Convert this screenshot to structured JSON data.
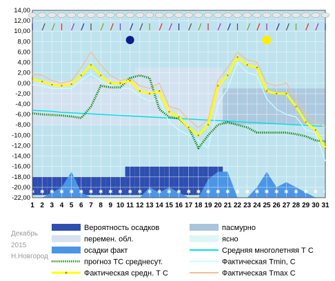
{
  "side_info": {
    "month": "Декабрь",
    "year": "2015",
    "city": "Н.Новгород"
  },
  "colors": {
    "background": "#bfe3ee",
    "overcast": "#a9c4dc",
    "variable_cloud": "#d6e2f0",
    "clear": "#ddf6f6",
    "precip_probability": "#2e4fb0",
    "precip_actual": "#4b95e6",
    "temp_actual": "#ffff00",
    "temp_min": "#c8ffff",
    "temp_max": "#f2c090",
    "temp_normal": "#00e0e8",
    "forecast": "#008000",
    "new_moon": "#0b1e8c",
    "full_moon": "#ffee00"
  },
  "legend": [
    {
      "label": "Вероятность осадков",
      "swatch": "bar",
      "color": "#2e4fb0"
    },
    {
      "label": "пасмурно",
      "swatch": "bar",
      "color": "#a9c4dc"
    },
    {
      "label": "перемен. обл.",
      "swatch": "bar",
      "color": "#d6e2f0"
    },
    {
      "label": "ясно",
      "swatch": "bar",
      "color": "#ddf6f6"
    },
    {
      "label": "осадки факт",
      "swatch": "bar",
      "color": "#4b95e6"
    },
    {
      "label": "Средняя многолетняя Т С",
      "swatch": "line",
      "color": "#00e0e8"
    },
    {
      "label": "прогноз ТС среднесут.",
      "swatch": "dotted",
      "color": "#008000"
    },
    {
      "label": "Фактическая Tmin, C",
      "swatch": "line",
      "color": "#c8ffff"
    },
    {
      "label": "Фактическая средн. Т С",
      "swatch": "marker-line",
      "color": "#ffff00"
    },
    {
      "label": "Фактическая Tmax С",
      "swatch": "line",
      "color": "#f2c090"
    },
    {
      "label": "новолуние",
      "swatch": "dot",
      "color": "#0b1e8c"
    },
    {
      "label": "Полнолуние",
      "swatch": "dot",
      "color": "#ffee00"
    }
  ],
  "chart_data": {
    "type": "line",
    "x": [
      1,
      2,
      3,
      4,
      5,
      6,
      7,
      8,
      9,
      10,
      11,
      12,
      13,
      14,
      15,
      16,
      17,
      18,
      19,
      20,
      21,
      22,
      23,
      24,
      25,
      26,
      27,
      28,
      29,
      30,
      31
    ],
    "xlim": [
      1,
      31
    ],
    "ylim": [
      -22,
      14
    ],
    "yticks": [
      14,
      12,
      10,
      8,
      6,
      4,
      2,
      0,
      -2,
      -4,
      -6,
      -8,
      -10,
      -12,
      -14,
      -16,
      -18,
      -20,
      -22
    ],
    "ytick_labels": [
      "14,00",
      "12,00",
      "10,00",
      "8,00",
      "6,00",
      "4,00",
      "2,00",
      "0,00",
      "-2,00",
      "-4,00",
      "-6,00",
      "-8,00",
      "-10,00",
      "-12,00",
      "-14,00",
      "-16,00",
      "-18,00",
      "-20,00",
      "-22,00"
    ],
    "series": [
      {
        "name": "Фактическая средн. Т С",
        "color": "#ffff00",
        "values": [
          0.8,
          0.3,
          -0.3,
          -0.5,
          -0.2,
          1.5,
          3.5,
          1.5,
          0,
          0,
          0.5,
          -1.5,
          -2,
          -1.5,
          -5.5,
          -6.5,
          -8.5,
          -10,
          -8,
          -0.5,
          1.5,
          5,
          3.5,
          3,
          -1.5,
          -2,
          -2,
          -4.5,
          -7.5,
          -9,
          -12.5
        ]
      },
      {
        "name": "Фактическая Tmin, C",
        "color": "#c8ffff",
        "values": [
          -0.3,
          -0.5,
          -1,
          -1,
          -1,
          0.5,
          1.8,
          0.5,
          -0.5,
          -1,
          -1,
          -2.5,
          -3.5,
          -3,
          -7.5,
          -9,
          -10,
          -11,
          -12.5,
          -4,
          -1,
          4,
          2,
          1.5,
          -3,
          -5,
          -6,
          -6.5,
          -9,
          -9.5,
          -15
        ]
      },
      {
        "name": "Фактическая Tmax С",
        "color": "#f2c090",
        "values": [
          1.8,
          1.5,
          0.5,
          0,
          0.5,
          3,
          6,
          3.5,
          1.5,
          0.5,
          1,
          -0.5,
          -1,
          0,
          -4.5,
          -5,
          -7,
          -8.5,
          -7,
          0.5,
          3,
          6,
          4.5,
          4,
          0,
          -0.5,
          0,
          -3,
          -6,
          -7.5,
          -8.5
        ]
      },
      {
        "name": "Средняя многолетняя Т С",
        "color": "#00e0e8",
        "values": [
          -5.2,
          -5.3,
          -5.4,
          -5.6,
          -5.7,
          -5.8,
          -5.9,
          -6,
          -6.1,
          -6.2,
          -6.3,
          -6.4,
          -6.5,
          -6.6,
          -6.7,
          -6.8,
          -6.9,
          -7,
          -7.1,
          -7.2,
          -7.3,
          -7.4,
          -7.5,
          -7.6,
          -7.7,
          -7.8,
          -7.9,
          -8,
          -8.1,
          -8.2,
          -8.3
        ]
      },
      {
        "name": "прогноз ТС среднесут.",
        "color": "#008000",
        "values": [
          -5.8,
          -6,
          -6.1,
          -6.2,
          -6.4,
          -6.7,
          -4.5,
          -0.5,
          -0.8,
          -0.8,
          1,
          1.5,
          1,
          -5,
          -6.5,
          -6.8,
          -8.5,
          -12.5,
          -10,
          -8,
          -7.5,
          -8,
          -8.5,
          -9.5,
          -9.5,
          -9.5,
          -9.5,
          -9.8,
          -10.2,
          -11,
          -11.2
        ]
      }
    ],
    "precip_probability": [
      1,
      1,
      1,
      1,
      1,
      1,
      1,
      1,
      1,
      1,
      1,
      1,
      1,
      1,
      1,
      1,
      1,
      1,
      1,
      1,
      0,
      0,
      0,
      0,
      0,
      0,
      0,
      0,
      0,
      0,
      0
    ],
    "precip_probability_level": [
      -18,
      -18,
      -18,
      -18,
      -18,
      -18,
      -18,
      -18,
      -18,
      -18,
      -16,
      -16,
      -16,
      -16,
      -16,
      -16,
      -16,
      -16,
      -16,
      -16,
      -22,
      -22,
      -22,
      -22,
      -22,
      -22,
      -22,
      -22,
      -22,
      -22,
      -22
    ],
    "precip_actual_top": [
      -22,
      -22,
      -21,
      -20,
      -17,
      -21,
      -22,
      -22,
      -22,
      -22,
      -22,
      -22,
      -20,
      -21,
      -20,
      -21,
      -22,
      -22,
      -18.5,
      -17,
      -17,
      -22,
      -22,
      -20,
      -17,
      -20,
      -19,
      -20,
      -21,
      -22,
      -22
    ],
    "cloud_band_top": [
      0.5,
      0.5,
      0.5,
      0.5,
      0.5,
      1,
      1,
      1,
      1,
      1,
      1,
      3,
      3,
      3,
      3,
      3,
      3,
      3,
      3,
      3,
      -1,
      -1,
      -1,
      -1,
      -1,
      -1,
      -1,
      -1,
      -1,
      -1,
      -1
    ],
    "new_moon_day": 11,
    "full_moon_day": 25,
    "moon_level": 8.3,
    "weather_icon_row": "cloud-and-wind-symbols"
  }
}
